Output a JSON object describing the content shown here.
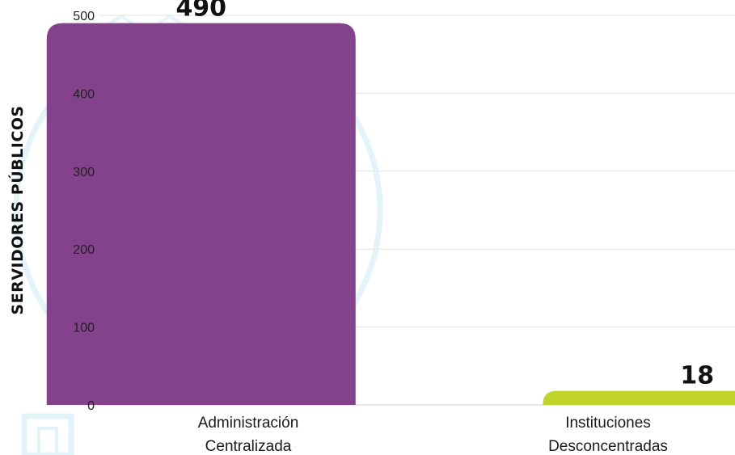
{
  "chart_data": {
    "type": "bar",
    "ylabel": "SERVIDORES PÚBLICOS",
    "ylim": [
      0,
      500
    ],
    "yticks": [
      0,
      100,
      200,
      300,
      400,
      500
    ],
    "grid": true,
    "categories": [
      [
        "Administración",
        "Centralizada"
      ],
      [
        "Instituciones",
        "Desconcentradas"
      ]
    ],
    "values": [
      490,
      18
    ],
    "value_labels": [
      "490",
      "18"
    ],
    "colors": [
      "#84418c",
      "#c1d42a"
    ]
  }
}
